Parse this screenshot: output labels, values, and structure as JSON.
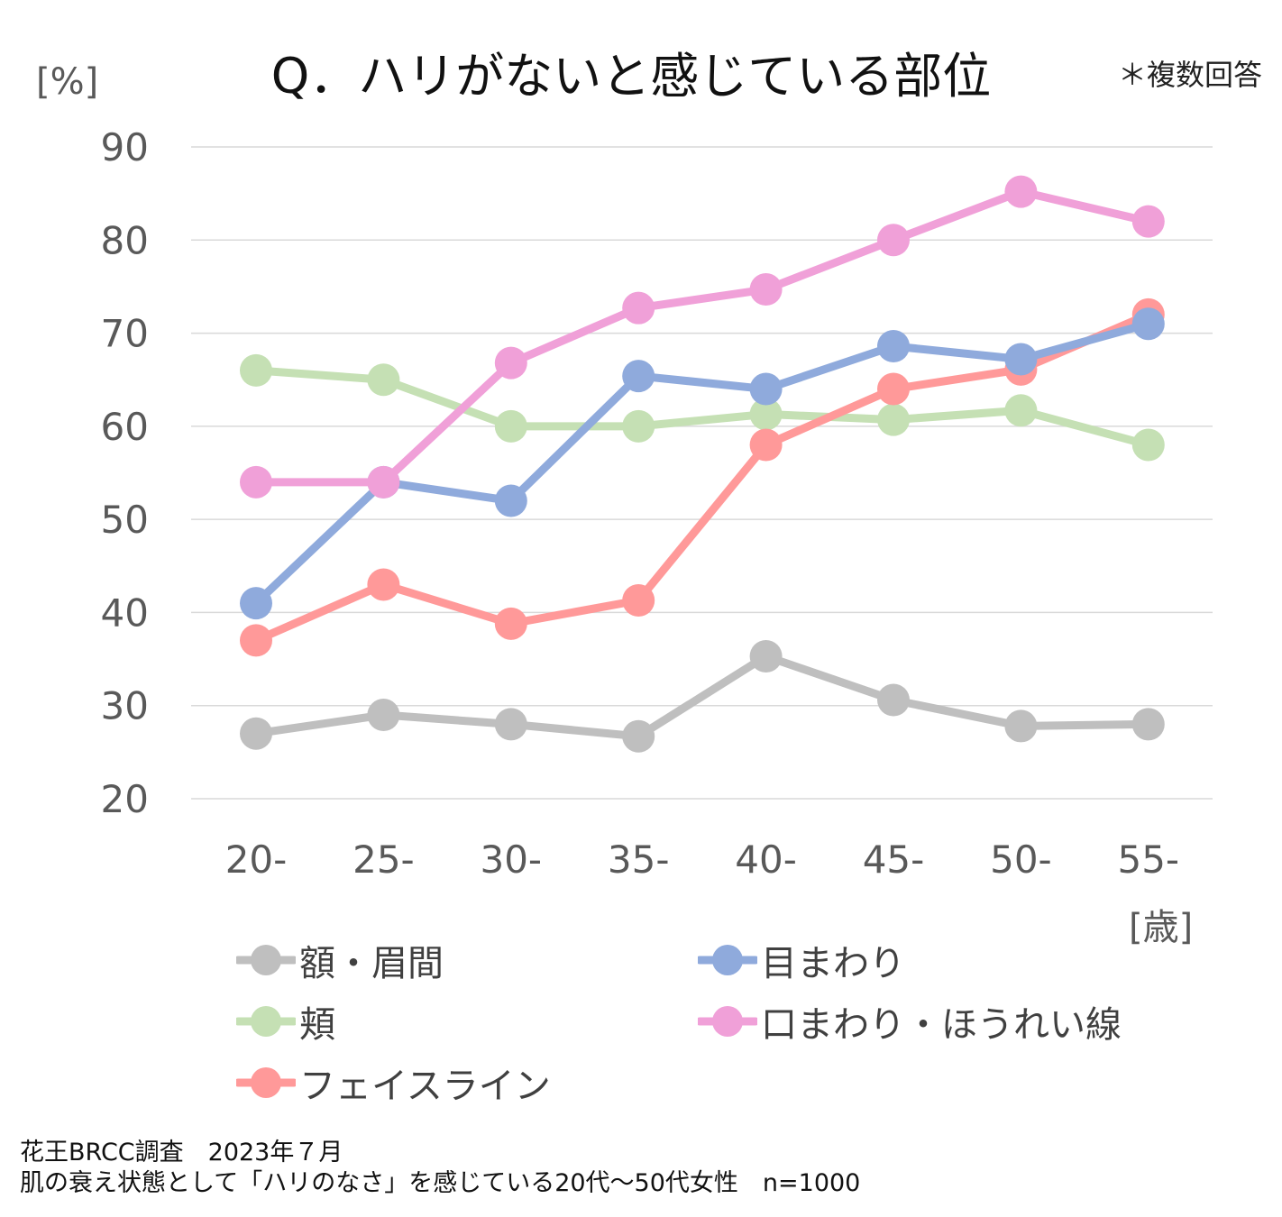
{
  "title": "Q．ハリがないと感じている部位",
  "note": "＊複数回答",
  "chart_data": {
    "type": "line",
    "title": "Q．ハリがないと感じている部位",
    "ylabel": "[%]",
    "xlabel": "[歳]",
    "ylim": [
      20,
      90
    ],
    "yticks": [
      20,
      30,
      40,
      50,
      60,
      70,
      80,
      90
    ],
    "categories": [
      "20-",
      "25-",
      "30-",
      "35-",
      "40-",
      "45-",
      "50-",
      "55-"
    ],
    "grid": true,
    "legend_position": "bottom",
    "series": [
      {
        "name": "額・眉間",
        "color": "#bfbfbf",
        "values": [
          27.0,
          29.0,
          28.0,
          26.7,
          35.3,
          30.6,
          27.8,
          28.0
        ]
      },
      {
        "name": "頬",
        "color": "#c5e0b4",
        "values": [
          66.0,
          65.0,
          60.0,
          60.0,
          61.3,
          60.7,
          61.7,
          58.0
        ]
      },
      {
        "name": "フェイスライン",
        "color": "#ff9999",
        "values": [
          37.0,
          43.0,
          38.8,
          41.3,
          58.0,
          64.0,
          66.1,
          72.0
        ]
      },
      {
        "name": "目まわり",
        "color": "#8faadc",
        "values": [
          41.0,
          54.0,
          52.0,
          65.4,
          64.0,
          68.6,
          67.2,
          71.0
        ]
      },
      {
        "name": "口まわり・ほうれい線",
        "color": "#f0a0d8",
        "values": [
          54.0,
          54.0,
          66.8,
          72.7,
          74.7,
          80.0,
          85.2,
          82.0
        ]
      }
    ]
  },
  "footer": {
    "line1": "花王BRCC調査　2023年７月",
    "line2": "肌の衰え状態として「ハリのなさ」を感じている20代～50代女性　n=1000"
  }
}
